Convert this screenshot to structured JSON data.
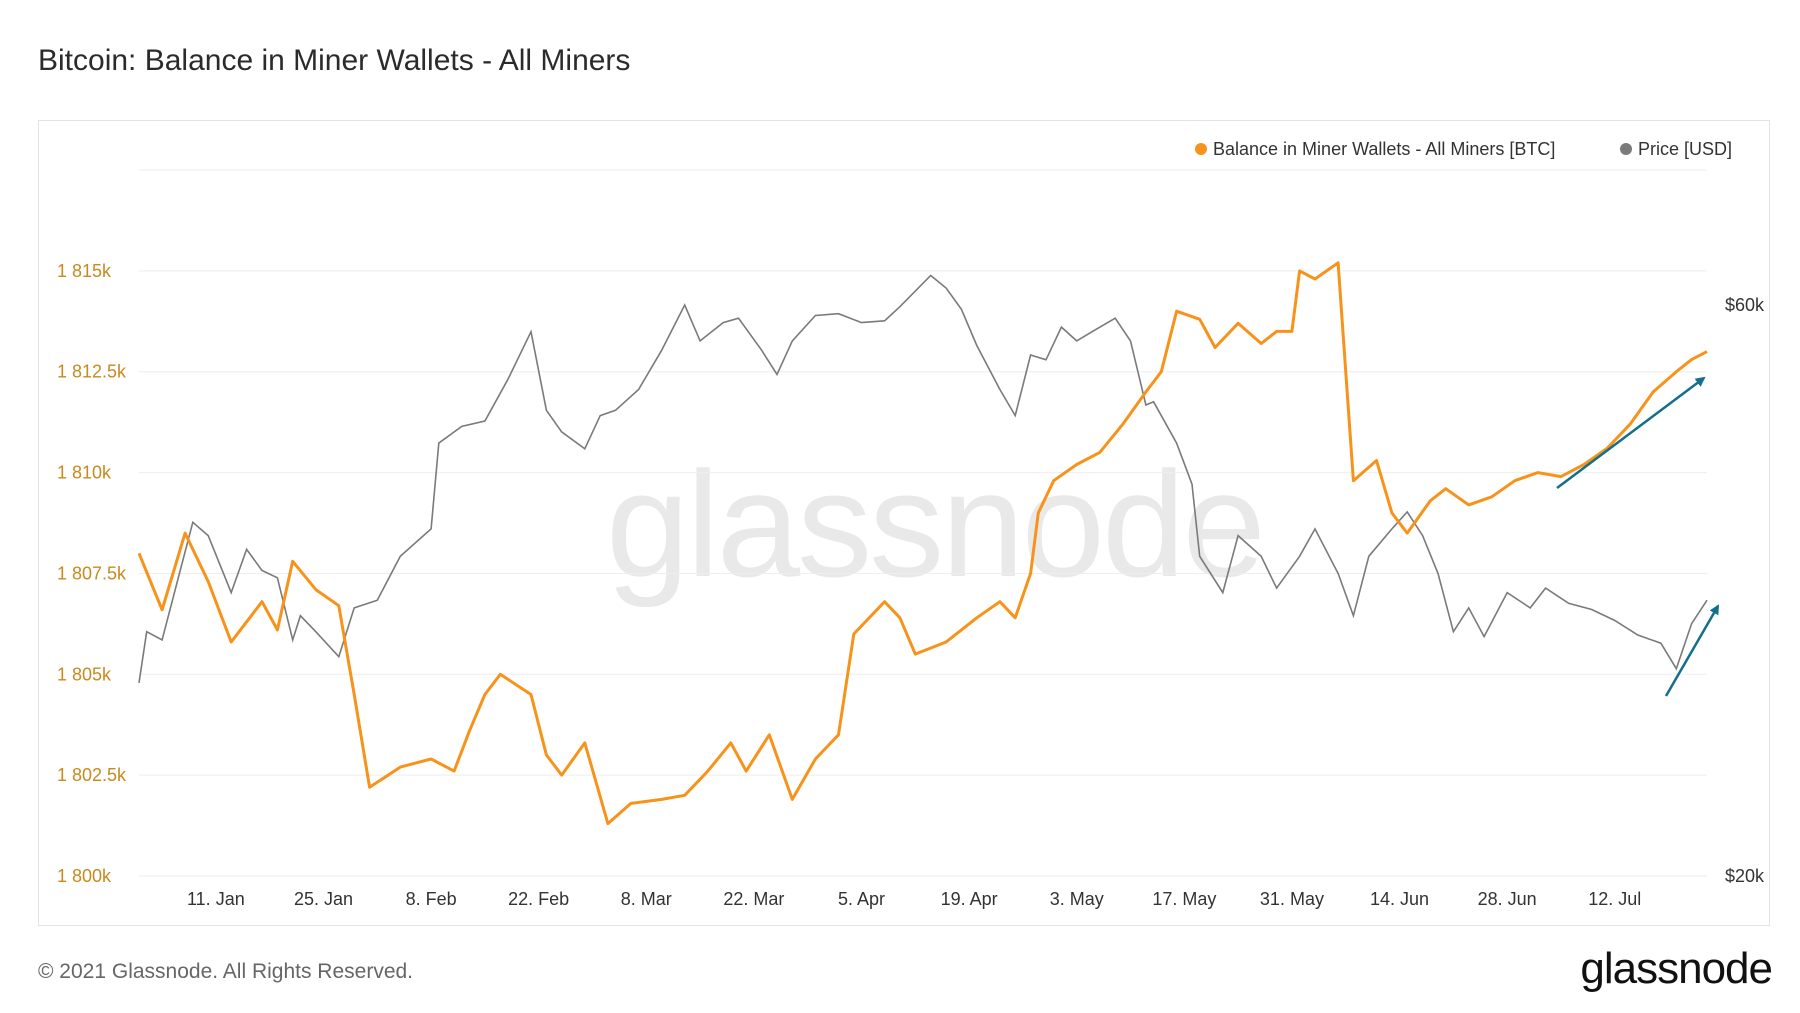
{
  "title": "Bitcoin: Balance in Miner Wallets - All Miners",
  "footer": "© 2021 Glassnode. All Rights Reserved.",
  "brand": "glassnode",
  "watermark": "glassnode",
  "colors": {
    "balance": "#f7931a",
    "price": "#7a7a7a",
    "arrow": "#136f8a",
    "grid": "#eeeeee"
  },
  "chart_data": {
    "type": "line",
    "title": "Bitcoin: Balance in Miner Wallets - All Miners",
    "legend": {
      "placement": "top-right"
    },
    "grid": true,
    "x_axis": {
      "ticks": [
        "11. Jan",
        "25. Jan",
        "8. Feb",
        "22. Feb",
        "8. Mar",
        "22. Mar",
        "5. Apr",
        "19. Apr",
        "3. May",
        "17. May",
        "31. May",
        "14. Jun",
        "28. Jun",
        "12. Jul"
      ],
      "range": [
        "2021-01-01",
        "2021-07-24"
      ]
    },
    "y_left": {
      "ticks": [
        "1 800k",
        "1 802.5k",
        "1 805k",
        "1 807.5k",
        "1 810k",
        "1 812.5k",
        "1 815k"
      ],
      "tick_values": [
        1800000,
        1802500,
        1805000,
        1807500,
        1810000,
        1812500,
        1815000
      ],
      "range": [
        1800000,
        1817600
      ]
    },
    "y_right": {
      "ticks": [
        "$20k",
        "$60k"
      ],
      "tick_values": [
        20000,
        60000
      ],
      "scale": "log"
    },
    "series": [
      {
        "name": "Balance in Miner Wallets - All Miners [BTC]",
        "axis": "left",
        "points": [
          [
            "2021-01-01",
            1808000
          ],
          [
            "2021-01-04",
            1806600
          ],
          [
            "2021-01-07",
            1808500
          ],
          [
            "2021-01-10",
            1807300
          ],
          [
            "2021-01-13",
            1805800
          ],
          [
            "2021-01-17",
            1806800
          ],
          [
            "2021-01-19",
            1806100
          ],
          [
            "2021-01-21",
            1807800
          ],
          [
            "2021-01-24",
            1807100
          ],
          [
            "2021-01-27",
            1806700
          ],
          [
            "2021-01-29",
            1804500
          ],
          [
            "2021-01-31",
            1802200
          ],
          [
            "2021-02-04",
            1802700
          ],
          [
            "2021-02-08",
            1802900
          ],
          [
            "2021-02-11",
            1802600
          ],
          [
            "2021-02-13",
            1803600
          ],
          [
            "2021-02-15",
            1804500
          ],
          [
            "2021-02-17",
            1805000
          ],
          [
            "2021-02-21",
            1804500
          ],
          [
            "2021-02-23",
            1803000
          ],
          [
            "2021-02-25",
            1802500
          ],
          [
            "2021-02-28",
            1803300
          ],
          [
            "2021-03-03",
            1801300
          ],
          [
            "2021-03-06",
            1801800
          ],
          [
            "2021-03-10",
            1801900
          ],
          [
            "2021-03-13",
            1802000
          ],
          [
            "2021-03-16",
            1802600
          ],
          [
            "2021-03-19",
            1803300
          ],
          [
            "2021-03-21",
            1802600
          ],
          [
            "2021-03-24",
            1803500
          ],
          [
            "2021-03-27",
            1801900
          ],
          [
            "2021-03-30",
            1802900
          ],
          [
            "2021-04-02",
            1803500
          ],
          [
            "2021-04-04",
            1806000
          ],
          [
            "2021-04-08",
            1806800
          ],
          [
            "2021-04-10",
            1806400
          ],
          [
            "2021-04-12",
            1805500
          ],
          [
            "2021-04-16",
            1805800
          ],
          [
            "2021-04-20",
            1806400
          ],
          [
            "2021-04-23",
            1806800
          ],
          [
            "2021-04-25",
            1806400
          ],
          [
            "2021-04-27",
            1807500
          ],
          [
            "2021-04-28",
            1809000
          ],
          [
            "2021-04-30",
            1809800
          ],
          [
            "2021-05-03",
            1810200
          ],
          [
            "2021-05-06",
            1810500
          ],
          [
            "2021-05-09",
            1811200
          ],
          [
            "2021-05-12",
            1812000
          ],
          [
            "2021-05-14",
            1812500
          ],
          [
            "2021-05-16",
            1814000
          ],
          [
            "2021-05-19",
            1813800
          ],
          [
            "2021-05-21",
            1813100
          ],
          [
            "2021-05-24",
            1813700
          ],
          [
            "2021-05-27",
            1813200
          ],
          [
            "2021-05-29",
            1813500
          ],
          [
            "2021-05-31",
            1813500
          ],
          [
            "2021-06-01",
            1815000
          ],
          [
            "2021-06-03",
            1814800
          ],
          [
            "2021-06-06",
            1815200
          ],
          [
            "2021-06-08",
            1809800
          ],
          [
            "2021-06-11",
            1810300
          ],
          [
            "2021-06-13",
            1809000
          ],
          [
            "2021-06-15",
            1808500
          ],
          [
            "2021-06-18",
            1809300
          ],
          [
            "2021-06-20",
            1809600
          ],
          [
            "2021-06-23",
            1809200
          ],
          [
            "2021-06-26",
            1809400
          ],
          [
            "2021-06-29",
            1809800
          ],
          [
            "2021-07-02",
            1810000
          ],
          [
            "2021-07-05",
            1809900
          ],
          [
            "2021-07-08",
            1810200
          ],
          [
            "2021-07-11",
            1810600
          ],
          [
            "2021-07-14",
            1811200
          ],
          [
            "2021-07-17",
            1812000
          ],
          [
            "2021-07-20",
            1812500
          ],
          [
            "2021-07-22",
            1812800
          ],
          [
            "2021-07-24",
            1813000
          ]
        ]
      },
      {
        "name": "Price [USD]",
        "axis": "right",
        "points": [
          [
            "2021-01-01",
            29000
          ],
          [
            "2021-01-02",
            32000
          ],
          [
            "2021-01-04",
            31500
          ],
          [
            "2021-01-08",
            39500
          ],
          [
            "2021-01-10",
            38500
          ],
          [
            "2021-01-13",
            34500
          ],
          [
            "2021-01-15",
            37500
          ],
          [
            "2021-01-17",
            36000
          ],
          [
            "2021-01-19",
            35500
          ],
          [
            "2021-01-21",
            31500
          ],
          [
            "2021-01-22",
            33000
          ],
          [
            "2021-01-24",
            32000
          ],
          [
            "2021-01-27",
            30500
          ],
          [
            "2021-01-29",
            33500
          ],
          [
            "2021-02-01",
            34000
          ],
          [
            "2021-02-04",
            37000
          ],
          [
            "2021-02-08",
            39000
          ],
          [
            "2021-02-09",
            46000
          ],
          [
            "2021-02-12",
            47500
          ],
          [
            "2021-02-15",
            48000
          ],
          [
            "2021-02-18",
            52000
          ],
          [
            "2021-02-21",
            57000
          ],
          [
            "2021-02-23",
            49000
          ],
          [
            "2021-02-25",
            47000
          ],
          [
            "2021-02-28",
            45500
          ],
          [
            "2021-03-02",
            48500
          ],
          [
            "2021-03-04",
            49000
          ],
          [
            "2021-03-07",
            51000
          ],
          [
            "2021-03-10",
            55000
          ],
          [
            "2021-03-13",
            60000
          ],
          [
            "2021-03-15",
            56000
          ],
          [
            "2021-03-18",
            58000
          ],
          [
            "2021-03-20",
            58500
          ],
          [
            "2021-03-23",
            55000
          ],
          [
            "2021-03-25",
            52500
          ],
          [
            "2021-03-27",
            56000
          ],
          [
            "2021-03-30",
            58800
          ],
          [
            "2021-04-02",
            59000
          ],
          [
            "2021-04-05",
            58000
          ],
          [
            "2021-04-08",
            58200
          ],
          [
            "2021-04-10",
            59800
          ],
          [
            "2021-04-14",
            63500
          ],
          [
            "2021-04-16",
            62000
          ],
          [
            "2021-04-18",
            59500
          ],
          [
            "2021-04-20",
            55500
          ],
          [
            "2021-04-23",
            51000
          ],
          [
            "2021-04-25",
            48500
          ],
          [
            "2021-04-27",
            54500
          ],
          [
            "2021-04-29",
            54000
          ],
          [
            "2021-05-01",
            57500
          ],
          [
            "2021-05-03",
            56000
          ],
          [
            "2021-05-05",
            57000
          ],
          [
            "2021-05-08",
            58500
          ],
          [
            "2021-05-10",
            56000
          ],
          [
            "2021-05-12",
            49500
          ],
          [
            "2021-05-13",
            49800
          ],
          [
            "2021-05-16",
            46000
          ],
          [
            "2021-05-18",
            42500
          ],
          [
            "2021-05-19",
            37000
          ],
          [
            "2021-05-22",
            34500
          ],
          [
            "2021-05-24",
            38500
          ],
          [
            "2021-05-27",
            37000
          ],
          [
            "2021-05-29",
            34800
          ],
          [
            "2021-06-01",
            37000
          ],
          [
            "2021-06-03",
            39000
          ],
          [
            "2021-06-06",
            35800
          ],
          [
            "2021-06-08",
            33000
          ],
          [
            "2021-06-10",
            37000
          ],
          [
            "2021-06-13",
            39000
          ],
          [
            "2021-06-15",
            40300
          ],
          [
            "2021-06-17",
            38500
          ],
          [
            "2021-06-19",
            35800
          ],
          [
            "2021-06-21",
            32000
          ],
          [
            "2021-06-23",
            33500
          ],
          [
            "2021-06-25",
            31700
          ],
          [
            "2021-06-28",
            34500
          ],
          [
            "2021-07-01",
            33500
          ],
          [
            "2021-07-03",
            34800
          ],
          [
            "2021-07-06",
            33800
          ],
          [
            "2021-07-09",
            33400
          ],
          [
            "2021-07-12",
            32700
          ],
          [
            "2021-07-15",
            31800
          ],
          [
            "2021-07-18",
            31300
          ],
          [
            "2021-07-20",
            29800
          ],
          [
            "2021-07-22",
            32500
          ],
          [
            "2021-07-24",
            34000
          ]
        ]
      }
    ]
  }
}
